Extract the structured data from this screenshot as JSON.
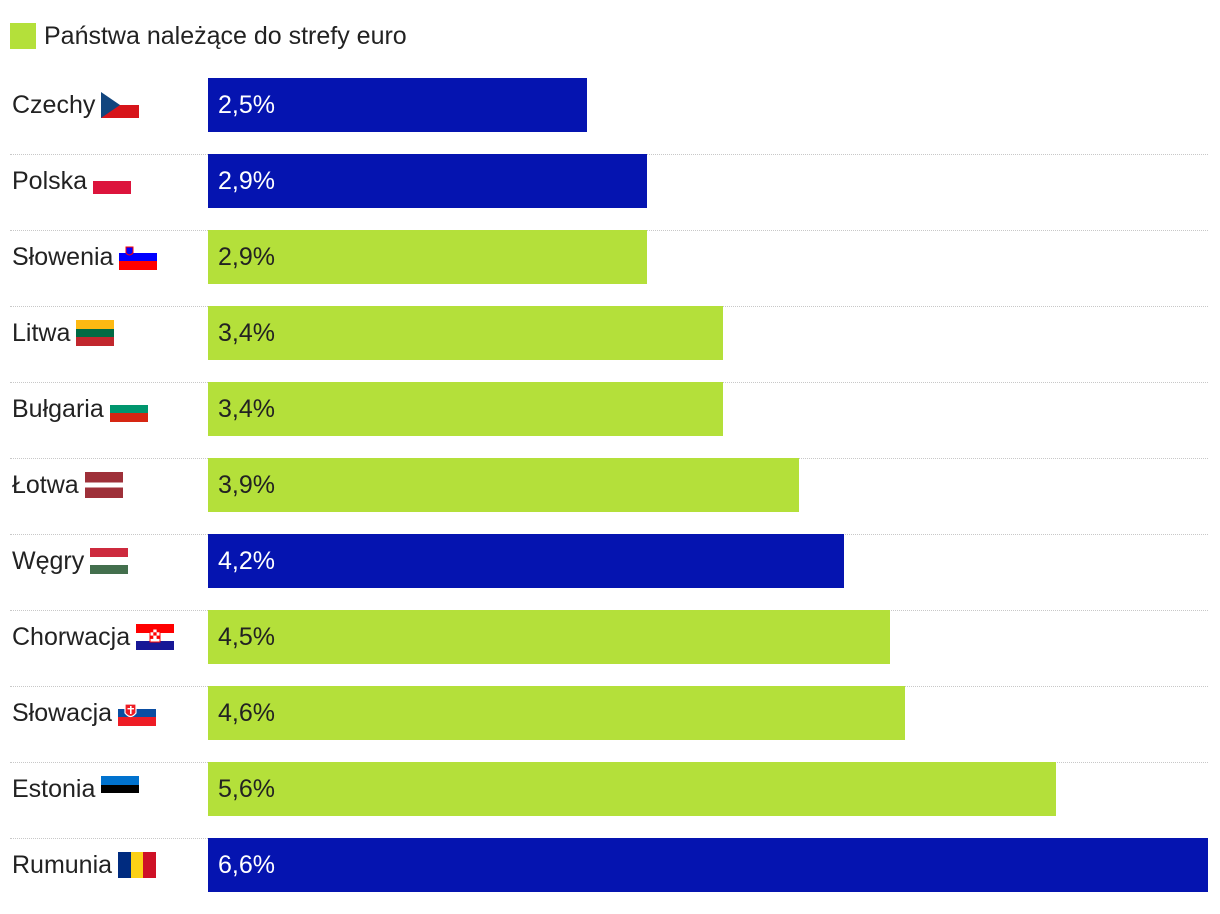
{
  "legend": {
    "label": "Państwa należące do strefy euro",
    "color": "#b4e03a"
  },
  "colors": {
    "euro": "#b4e03a",
    "non_euro": "#0514b0",
    "text_dark": "#222222",
    "text_light": "#ffffff"
  },
  "chart_data": {
    "type": "bar",
    "orientation": "horizontal",
    "title": "",
    "categories": [
      "Czechy",
      "Polska",
      "Słowenia",
      "Litwa",
      "Bułgaria",
      "Łotwa",
      "Węgry",
      "Chorwacja",
      "Słowacja",
      "Estonia",
      "Rumunia"
    ],
    "values": [
      2.5,
      2.9,
      2.9,
      3.4,
      3.4,
      3.9,
      4.2,
      4.5,
      4.6,
      5.6,
      6.6
    ],
    "labels": [
      "2,5%",
      "2,9%",
      "2,9%",
      "3,4%",
      "3,4%",
      "3,9%",
      "4,2%",
      "4,5%",
      "4,6%",
      "5,6%",
      "6,6%"
    ],
    "euro_member": [
      false,
      false,
      true,
      true,
      true,
      true,
      false,
      true,
      true,
      true,
      false
    ],
    "flags": [
      "czech-flag-icon",
      "poland-flag-icon",
      "slovenia-flag-icon",
      "lithuania-flag-icon",
      "bulgaria-flag-icon",
      "latvia-flag-icon",
      "hungary-flag-icon",
      "croatia-flag-icon",
      "slovakia-flag-icon",
      "estonia-flag-icon",
      "romania-flag-icon"
    ],
    "xlim": [
      0,
      6.6
    ],
    "legend_position": "top-left"
  }
}
